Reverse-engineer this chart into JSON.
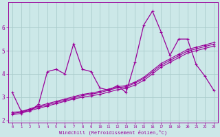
{
  "xlabel": "Windchill (Refroidissement éolien,°C)",
  "background_color": "#cce8e8",
  "grid_color": "#aacccc",
  "line_color": "#990099",
  "x_data": [
    0,
    1,
    2,
    3,
    4,
    5,
    6,
    7,
    8,
    9,
    10,
    11,
    12,
    13,
    14,
    15,
    16,
    17,
    18,
    19,
    20,
    21,
    22,
    23
  ],
  "series1": [
    3.2,
    2.4,
    2.4,
    2.7,
    4.1,
    4.2,
    4.0,
    5.3,
    4.2,
    4.1,
    3.4,
    3.3,
    3.5,
    3.2,
    4.5,
    6.1,
    6.7,
    5.8,
    4.8,
    5.5,
    5.5,
    4.4,
    3.9,
    3.3
  ],
  "series2": [
    2.35,
    2.38,
    2.5,
    2.62,
    2.72,
    2.82,
    2.92,
    3.02,
    3.12,
    3.18,
    3.25,
    3.35,
    3.45,
    3.5,
    3.65,
    3.85,
    4.15,
    4.45,
    4.65,
    4.85,
    5.05,
    5.15,
    5.25,
    5.35
  ],
  "series3": [
    2.3,
    2.35,
    2.47,
    2.57,
    2.67,
    2.77,
    2.87,
    2.97,
    3.07,
    3.13,
    3.2,
    3.3,
    3.4,
    3.45,
    3.6,
    3.8,
    4.08,
    4.38,
    4.58,
    4.78,
    4.98,
    5.08,
    5.18,
    5.28
  ],
  "series4": [
    2.25,
    2.3,
    2.42,
    2.52,
    2.62,
    2.72,
    2.82,
    2.92,
    3.0,
    3.06,
    3.12,
    3.22,
    3.32,
    3.38,
    3.52,
    3.72,
    4.0,
    4.3,
    4.5,
    4.7,
    4.9,
    5.0,
    5.1,
    5.2
  ],
  "ylim": [
    1.9,
    7.1
  ],
  "xlim": [
    -0.5,
    23.5
  ],
  "yticks": [
    2,
    3,
    4,
    5,
    6
  ],
  "xticks": [
    0,
    1,
    2,
    3,
    4,
    5,
    6,
    7,
    8,
    9,
    10,
    11,
    12,
    13,
    14,
    15,
    16,
    17,
    18,
    19,
    20,
    21,
    22,
    23
  ]
}
